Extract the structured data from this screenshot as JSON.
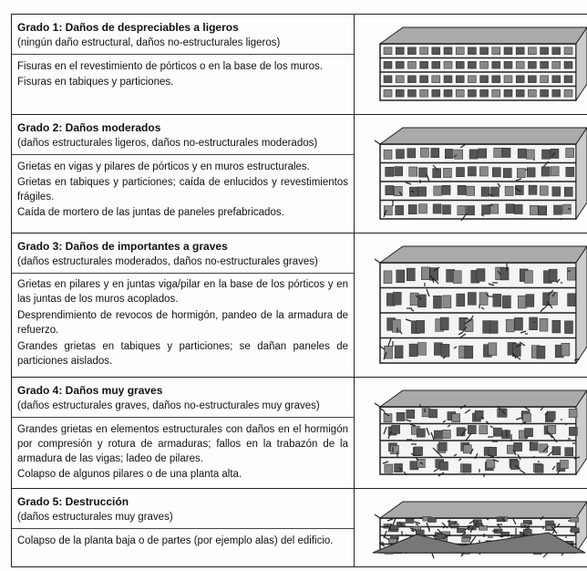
{
  "rows": [
    {
      "title": "Grado 1: Daños de despreciables a ligeros",
      "subtitle": "(ningún daño estructural, daños no-estructurales ligeros)",
      "description": [
        "Fisuras en el revestimiento de pórticos o en la base de los muros.",
        "Fisuras en tabiques y particiones."
      ]
    },
    {
      "title": "Grado 2: Daños moderados",
      "subtitle": "(daños estructurales ligeros, daños no-estructurales moderados)",
      "description": [
        "Grietas en vigas y pilares de pórticos y en muros estructurales.",
        "Grietas en tabiques y particiones; caída de enlucidos y revestimientos frágiles.",
        "Caída de mortero de las juntas de paneles prefabricados."
      ]
    },
    {
      "title": "Grado 3: Daños de importantes a graves",
      "subtitle": "(daños estructurales moderados, daños no-estructurales graves)",
      "description": [
        "Grietas en pilares y en juntas viga/pilar en la base de los pórticos y en las juntas de los muros acoplados.",
        "Desprendimiento de revocos de hormigón, pandeo de la armadura de refuerzo.",
        "Grandes grietas en tabiques y particiones; se dañan paneles de particiones aislados."
      ]
    },
    {
      "title": "Grado 4: Daños muy graves",
      "subtitle": "(daños estructurales graves, daños no-estructurales muy graves)",
      "description": [
        "Grandes grietas en elementos estructurales con daños en el hormigón por compresión y rotura de armaduras; fallos en la trabazón de la armadura de las vigas; ladeo de pilares.",
        "Colapso de algunos pilares o de una planta alta."
      ]
    },
    {
      "title": "Grado 5: Destrucción",
      "subtitle": "(daños estructurales muy graves)",
      "description": [
        "Colapso de la planta baja o de partes (por ejemplo alas) del edificio."
      ]
    }
  ]
}
